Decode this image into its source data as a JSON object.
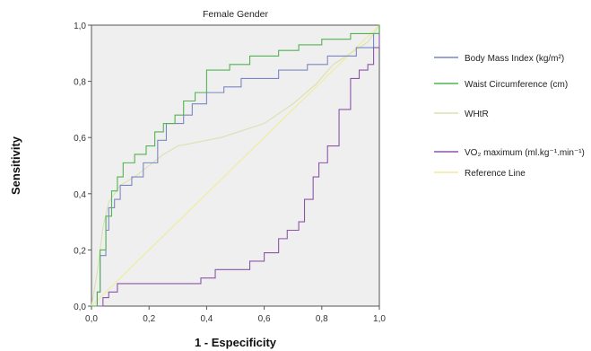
{
  "chart_data": {
    "type": "line",
    "title": "Female Gender",
    "xlabel": "1 - Especificity",
    "ylabel": "Sensitivity",
    "xlim": [
      0,
      1
    ],
    "ylim": [
      0,
      1
    ],
    "xticks": [
      "0,0",
      "0,2",
      "0,4",
      "0,6",
      "0,8",
      "1,0"
    ],
    "yticks": [
      "0,0",
      "0,2",
      "0,4",
      "0,6",
      "0,8",
      "1,0"
    ],
    "grid": false,
    "plot_background": "#efefef",
    "legend_position": "right",
    "series": [
      {
        "name": "Body Mass Index (kg/m²)",
        "color": "#7b87c4",
        "step": true,
        "points": [
          [
            0,
            0
          ],
          [
            0.02,
            0.05
          ],
          [
            0.03,
            0.18
          ],
          [
            0.05,
            0.27
          ],
          [
            0.06,
            0.35
          ],
          [
            0.08,
            0.38
          ],
          [
            0.1,
            0.43
          ],
          [
            0.14,
            0.46
          ],
          [
            0.18,
            0.51
          ],
          [
            0.23,
            0.59
          ],
          [
            0.26,
            0.65
          ],
          [
            0.32,
            0.68
          ],
          [
            0.35,
            0.72
          ],
          [
            0.4,
            0.76
          ],
          [
            0.46,
            0.78
          ],
          [
            0.52,
            0.81
          ],
          [
            0.65,
            0.84
          ],
          [
            0.75,
            0.86
          ],
          [
            0.82,
            0.89
          ],
          [
            0.92,
            0.92
          ],
          [
            0.98,
            0.97
          ],
          [
            1,
            1
          ]
        ]
      },
      {
        "name": "Waist Circumference (cm)",
        "color": "#52b452",
        "step": true,
        "points": [
          [
            0,
            0
          ],
          [
            0.02,
            0.05
          ],
          [
            0.03,
            0.2
          ],
          [
            0.05,
            0.32
          ],
          [
            0.07,
            0.41
          ],
          [
            0.09,
            0.46
          ],
          [
            0.11,
            0.51
          ],
          [
            0.15,
            0.54
          ],
          [
            0.19,
            0.57
          ],
          [
            0.22,
            0.62
          ],
          [
            0.25,
            0.65
          ],
          [
            0.29,
            0.68
          ],
          [
            0.32,
            0.73
          ],
          [
            0.36,
            0.76
          ],
          [
            0.4,
            0.84
          ],
          [
            0.48,
            0.86
          ],
          [
            0.55,
            0.89
          ],
          [
            0.65,
            0.91
          ],
          [
            0.72,
            0.93
          ],
          [
            0.8,
            0.95
          ],
          [
            0.9,
            0.97
          ],
          [
            1,
            1
          ]
        ]
      },
      {
        "name": "WHtR",
        "color": "#d8e2b0",
        "step": false,
        "points": [
          [
            0,
            0
          ],
          [
            0.02,
            0.12
          ],
          [
            0.04,
            0.28
          ],
          [
            0.06,
            0.37
          ],
          [
            0.1,
            0.43
          ],
          [
            0.15,
            0.46
          ],
          [
            0.2,
            0.5
          ],
          [
            0.25,
            0.54
          ],
          [
            0.3,
            0.57
          ],
          [
            0.45,
            0.6
          ],
          [
            0.6,
            0.65
          ],
          [
            0.7,
            0.72
          ],
          [
            0.78,
            0.79
          ],
          [
            0.84,
            0.86
          ],
          [
            0.9,
            0.9
          ],
          [
            0.96,
            0.94
          ],
          [
            1,
            1
          ]
        ]
      },
      {
        "name": "VO₂ maximum (ml.kg⁻¹.min⁻¹)",
        "color": "#8d55a8",
        "step": true,
        "points": [
          [
            0,
            0
          ],
          [
            0.04,
            0.03
          ],
          [
            0.06,
            0.05
          ],
          [
            0.09,
            0.08
          ],
          [
            0.38,
            0.1
          ],
          [
            0.43,
            0.13
          ],
          [
            0.55,
            0.16
          ],
          [
            0.6,
            0.19
          ],
          [
            0.65,
            0.24
          ],
          [
            0.68,
            0.27
          ],
          [
            0.72,
            0.3
          ],
          [
            0.74,
            0.38
          ],
          [
            0.77,
            0.46
          ],
          [
            0.79,
            0.51
          ],
          [
            0.82,
            0.57
          ],
          [
            0.86,
            0.7
          ],
          [
            0.9,
            0.81
          ],
          [
            0.93,
            0.84
          ],
          [
            0.96,
            0.86
          ],
          [
            0.98,
            0.92
          ],
          [
            1,
            1
          ]
        ]
      },
      {
        "name": "Reference Line",
        "color": "#f0ec9a",
        "step": false,
        "points": [
          [
            0,
            0
          ],
          [
            1,
            1
          ]
        ]
      }
    ]
  }
}
